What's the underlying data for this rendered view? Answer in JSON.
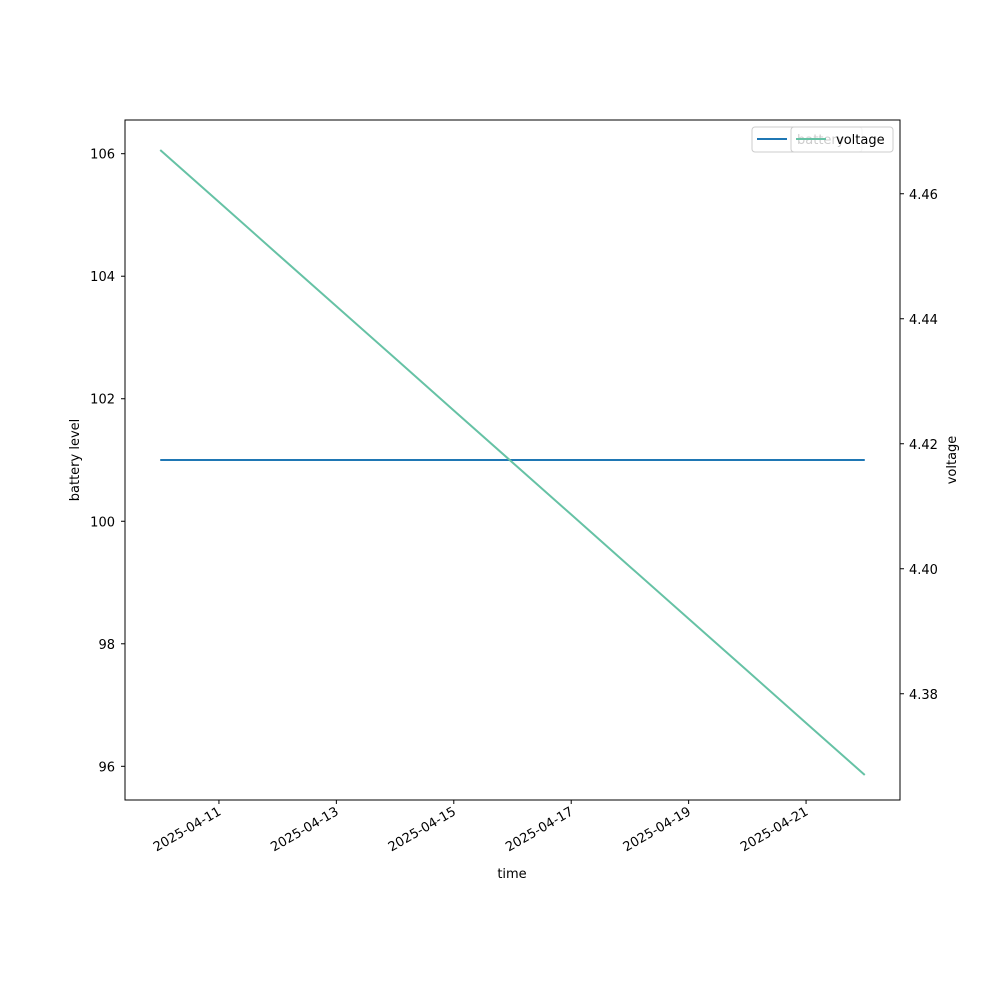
{
  "chart_data": {
    "type": "line",
    "title": "",
    "xlabel": "time",
    "ylabel": "battery level",
    "y2label": "voltage",
    "x": [
      "2025-04-10",
      "2025-04-11",
      "2025-04-12",
      "2025-04-13",
      "2025-04-14",
      "2025-04-15",
      "2025-04-16",
      "2025-04-17",
      "2025-04-18",
      "2025-04-19",
      "2025-04-20",
      "2025-04-21",
      "2025-04-22"
    ],
    "x_tick_labels": [
      "2025-04-11",
      "2025-04-13",
      "2025-04-15",
      "2025-04-17",
      "2025-04-19",
      "2025-04-21"
    ],
    "ylim": [
      95.45,
      106.55
    ],
    "y_ticks": [
      96,
      98,
      100,
      102,
      104,
      106
    ],
    "y2lim": [
      4.363,
      4.4718
    ],
    "y2_ticks": [
      4.38,
      4.4,
      4.42,
      4.44,
      4.46
    ],
    "grid": false,
    "legend_placement": "top-right",
    "series": [
      {
        "name": "battery",
        "axis": "left",
        "color": "#1f77b4",
        "values": [
          101,
          101,
          101,
          101,
          101,
          101,
          101,
          101,
          101,
          101,
          101,
          101,
          101
        ]
      },
      {
        "name": "voltage",
        "axis": "right",
        "color": "#66c2a5",
        "values": [
          4.467,
          4.45867,
          4.45033,
          4.442,
          4.43367,
          4.42533,
          4.417,
          4.40867,
          4.40033,
          4.392,
          4.38367,
          4.37533,
          4.367
        ]
      }
    ]
  }
}
